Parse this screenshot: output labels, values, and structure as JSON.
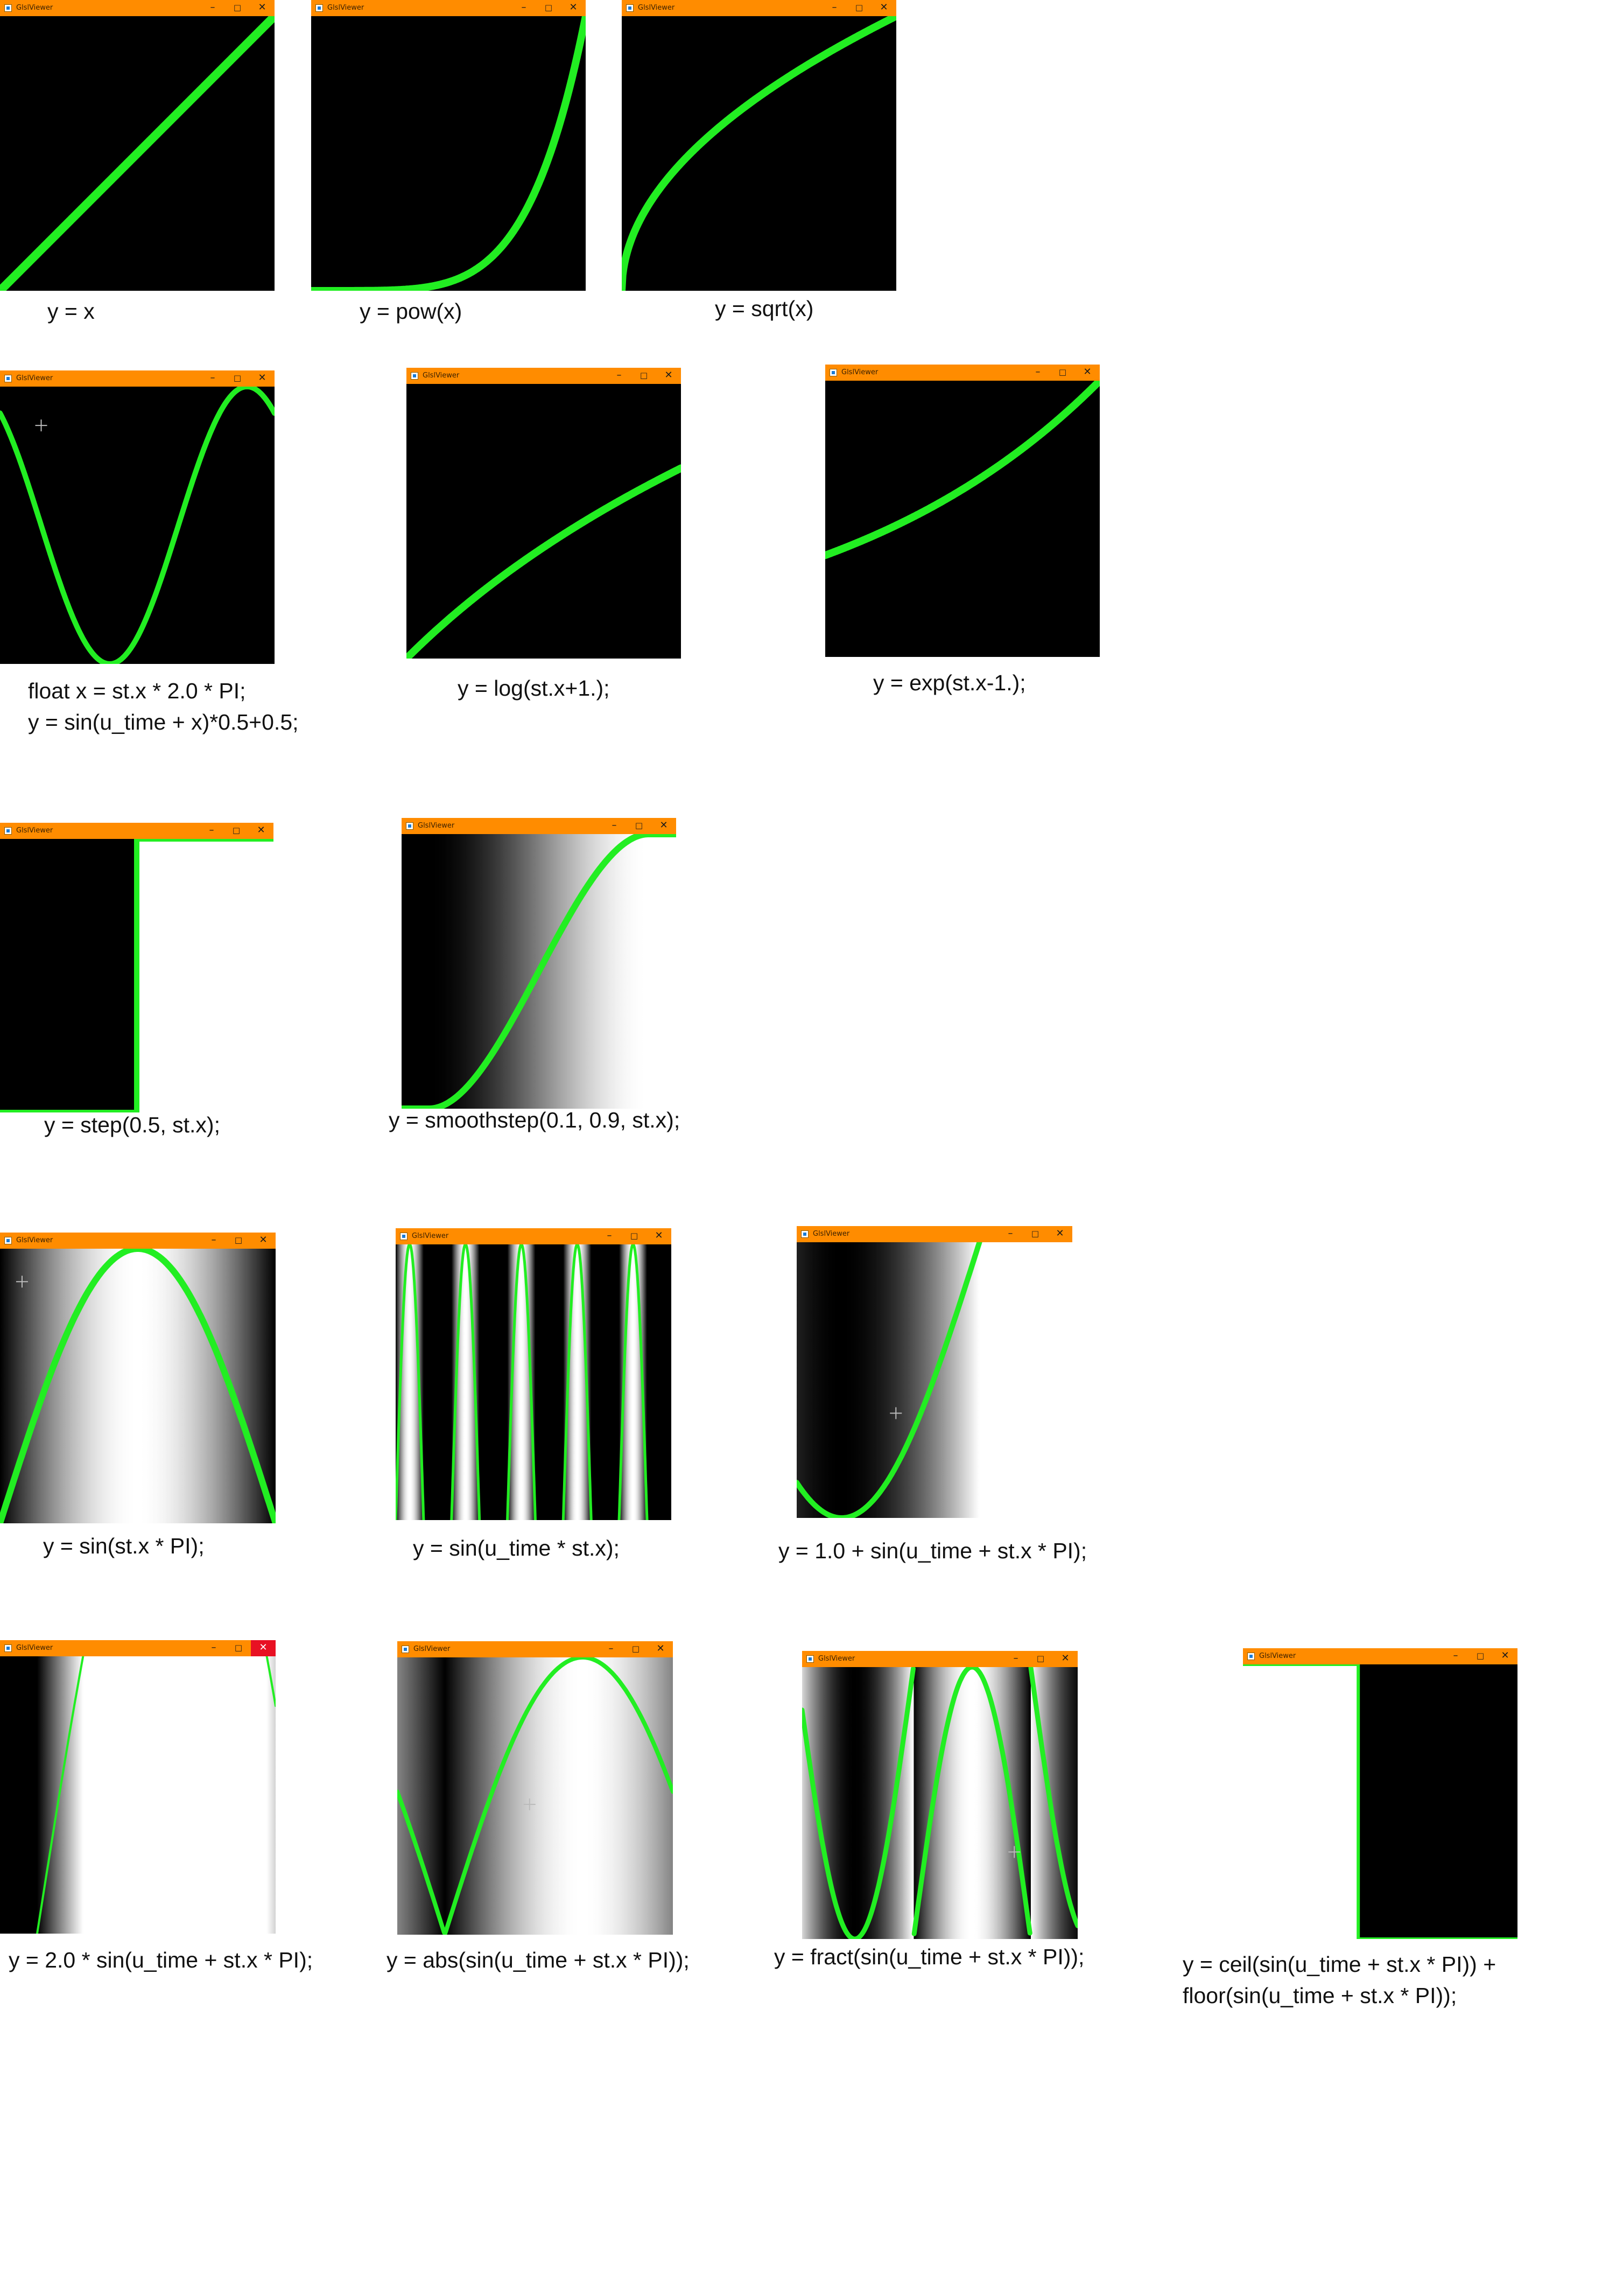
{
  "window": {
    "title": "GlslViewer",
    "minimize_glyph": "–",
    "maximize_glyph": "□",
    "close_glyph": "✕",
    "titlebar_color": "#ff8c00",
    "curve_color": "#22ee22"
  },
  "plots": [
    {
      "id": "linear",
      "caption_lines": [
        "y = x"
      ]
    },
    {
      "id": "pow",
      "caption_lines": [
        "y = pow(x)"
      ]
    },
    {
      "id": "sqrt",
      "caption_lines": [
        "y = sqrt(x)"
      ]
    },
    {
      "id": "sin_time",
      "caption_lines": [
        "float x =  st.x * 2.0 * PI;",
        "y = sin(u_time + x)*0.5+0.5;"
      ]
    },
    {
      "id": "log",
      "caption_lines": [
        "y = log(st.x+1.);"
      ]
    },
    {
      "id": "exp",
      "caption_lines": [
        "y = exp(st.x-1.);"
      ]
    },
    {
      "id": "step",
      "caption_lines": [
        "y = step(0.5, st.x);"
      ]
    },
    {
      "id": "smoothstep",
      "caption_lines": [
        "y = smoothstep(0.1, 0.9, st.x);"
      ]
    },
    {
      "id": "sin_pi",
      "caption_lines": [
        "y = sin(st.x * PI);"
      ]
    },
    {
      "id": "sin_freq",
      "caption_lines": [
        "y = sin(u_time * st.x);"
      ]
    },
    {
      "id": "one_plus_sin",
      "caption_lines": [
        "y = 1.0 + sin(u_time + st.x * PI);"
      ]
    },
    {
      "id": "two_sin",
      "caption_lines": [
        "y = 2.0 * sin(u_time + st.x * PI);"
      ]
    },
    {
      "id": "abs_sin",
      "caption_lines": [
        "y = abs(sin(u_time + st.x * PI));"
      ]
    },
    {
      "id": "fract_sin",
      "caption_lines": [
        "y = fract(sin(u_time + st.x * PI));"
      ]
    },
    {
      "id": "ceil_floor",
      "caption_lines": [
        "y = ceil(sin(u_time + st.x * PI)) +",
        "floor(sin(u_time + st.x * PI));"
      ]
    }
  ]
}
